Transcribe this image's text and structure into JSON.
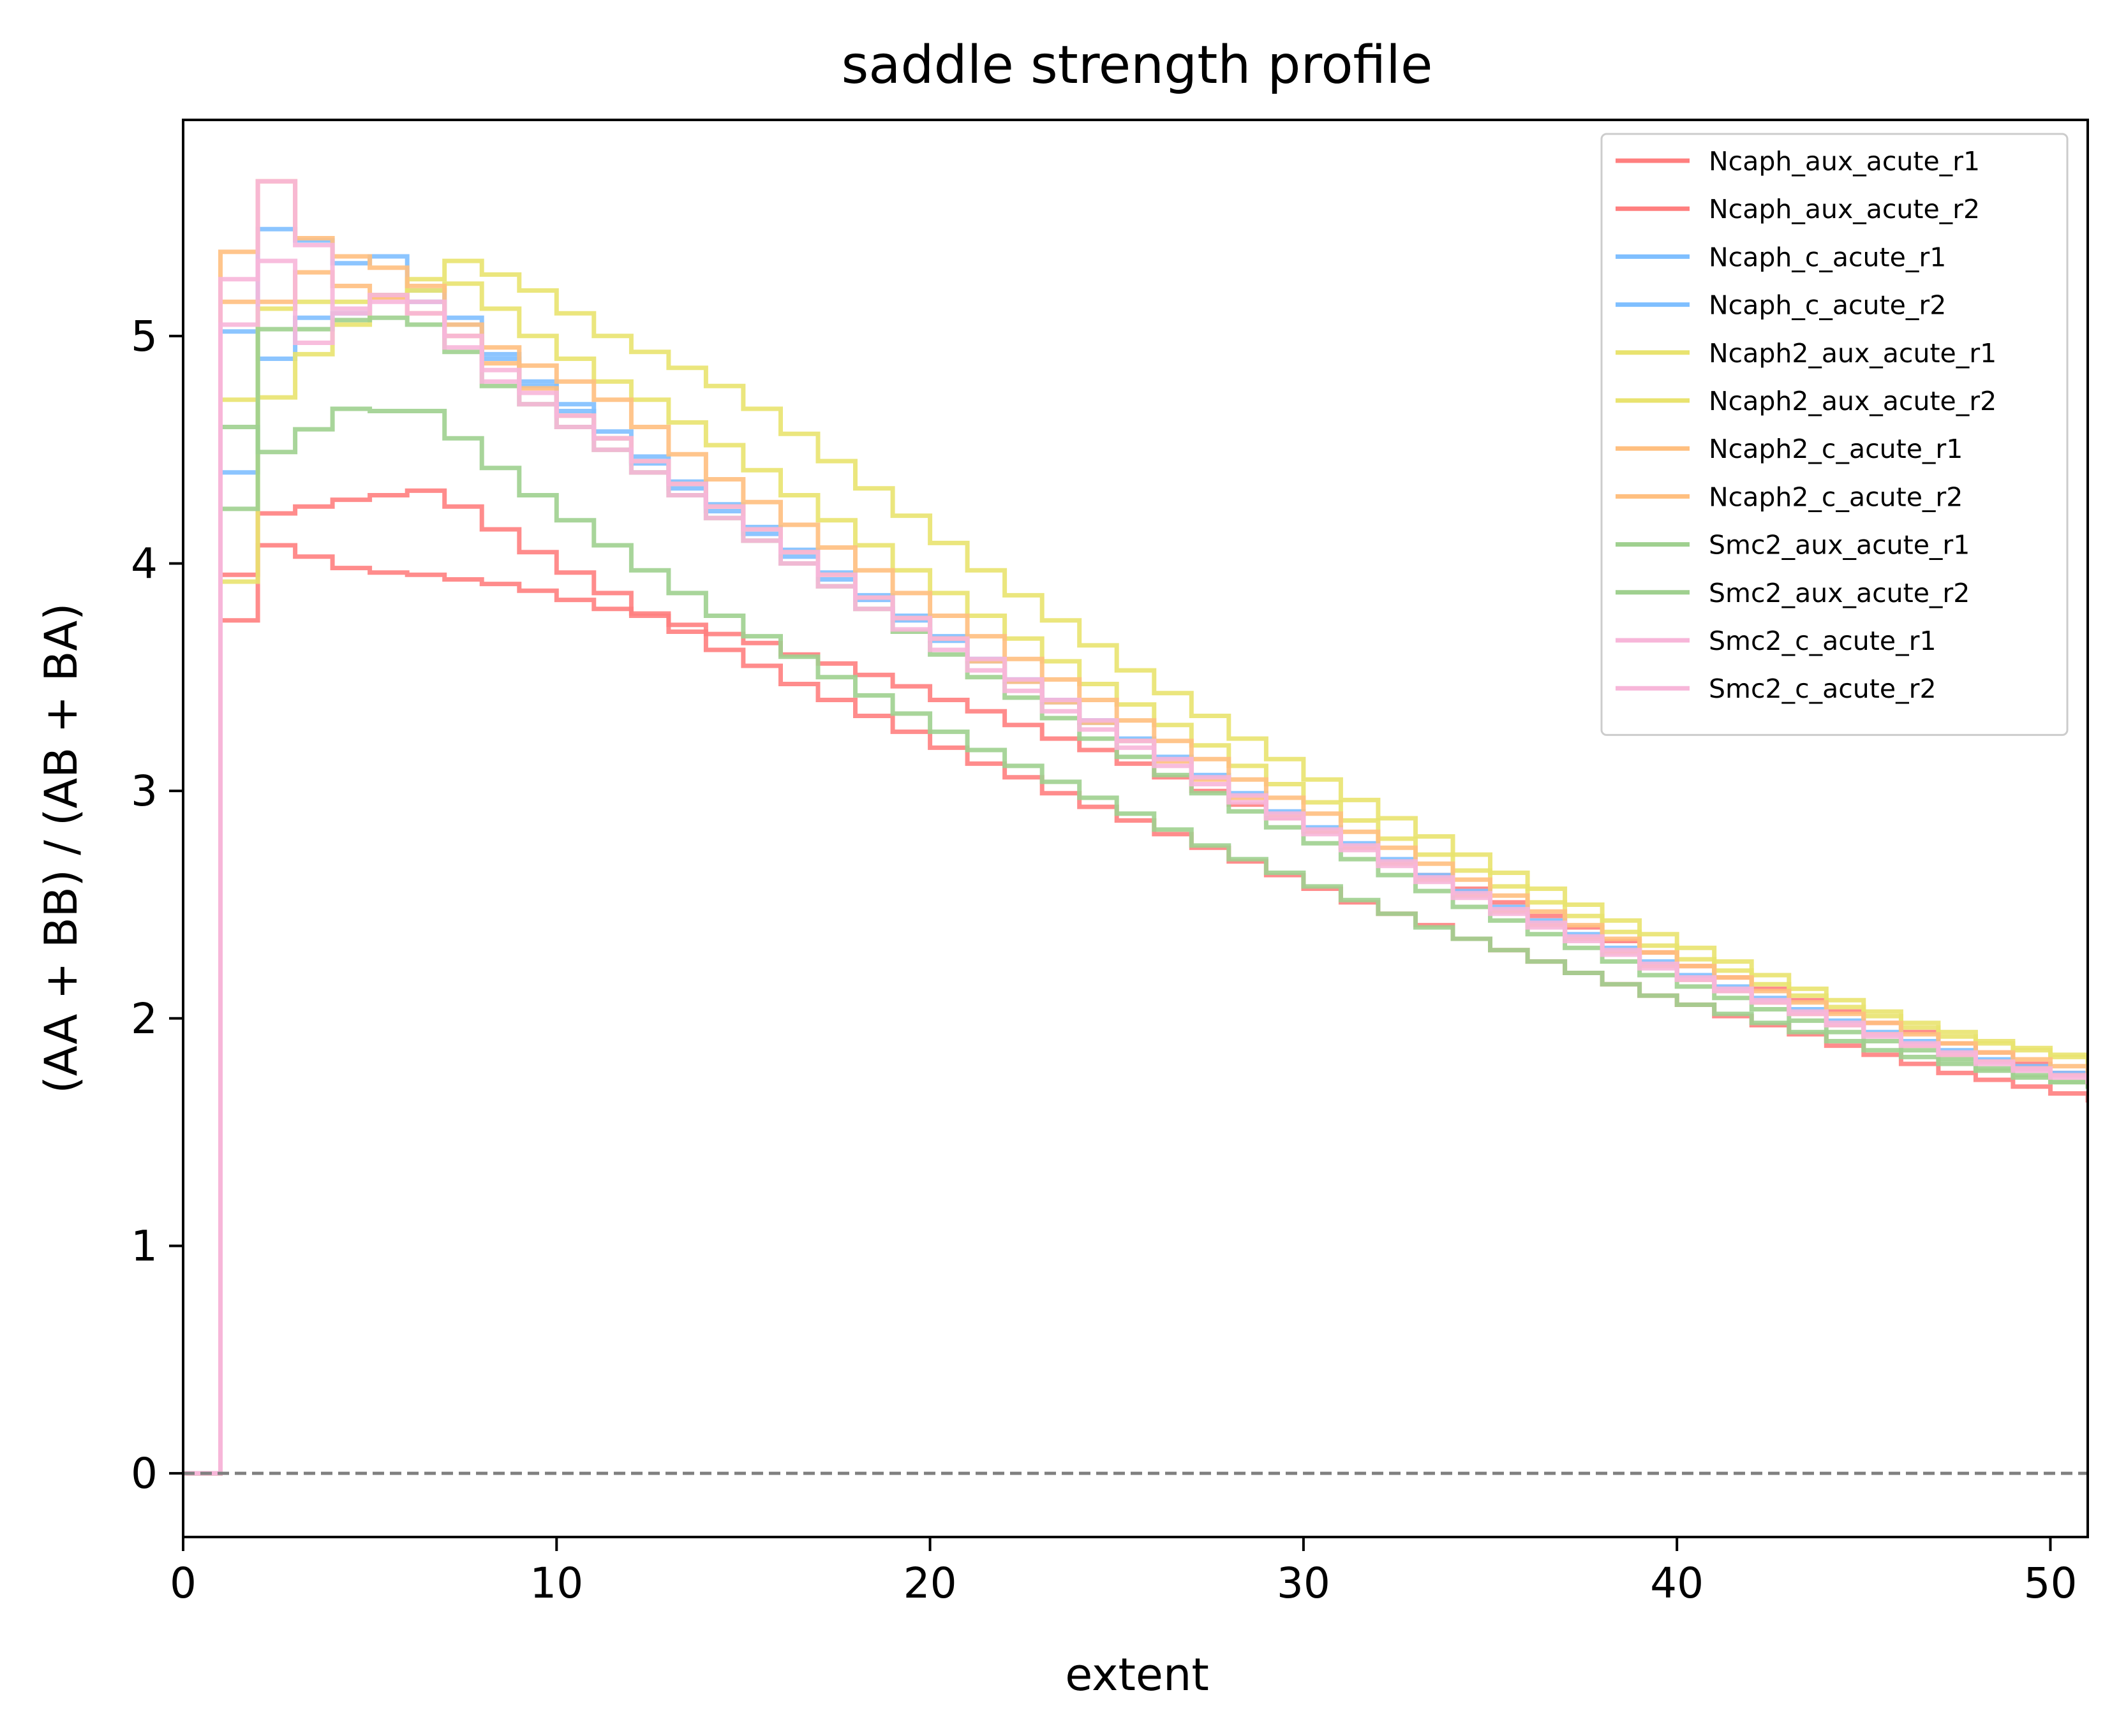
{
  "chart_data": {
    "type": "line",
    "step": "post",
    "title": "saddle strength profile",
    "xlabel": "extent",
    "ylabel": "(AA + BB) / (AB + BA)",
    "xlim": [
      0,
      51
    ],
    "ylim": [
      -0.28,
      5.95
    ],
    "xticks": [
      "0",
      "10",
      "20",
      "30",
      "40",
      "50"
    ],
    "yticks": [
      "0",
      "1",
      "2",
      "3",
      "4",
      "5"
    ],
    "grid": false,
    "legend_position": "top-right",
    "reference_line": {
      "y": 0,
      "style": "dashed",
      "color": "#808080"
    },
    "series": [
      {
        "name": "Ncaph_aux_acute_r1",
        "color": "#ff7f7f",
        "values": [
          0,
          3.75,
          4.08,
          4.03,
          3.98,
          3.96,
          3.95,
          3.93,
          3.91,
          3.88,
          3.84,
          3.8,
          3.77,
          3.73,
          3.69,
          3.65,
          3.6,
          3.56,
          3.51,
          3.46,
          3.4,
          3.35,
          3.29,
          3.23,
          3.18,
          3.12,
          3.06,
          3.0,
          2.94,
          2.88,
          2.82,
          2.75,
          2.69,
          2.63,
          2.57,
          2.51,
          2.45,
          2.4,
          2.34,
          2.29,
          2.23,
          2.18,
          2.13,
          2.08,
          2.03,
          1.98,
          1.94,
          1.89,
          1.85,
          1.8,
          1.76,
          1.72
        ]
      },
      {
        "name": "Ncaph_aux_acute_r2",
        "color": "#ff7f7f",
        "values": [
          0,
          3.95,
          4.22,
          4.25,
          4.28,
          4.3,
          4.32,
          4.25,
          4.15,
          4.05,
          3.96,
          3.87,
          3.78,
          3.7,
          3.62,
          3.55,
          3.47,
          3.4,
          3.33,
          3.26,
          3.19,
          3.12,
          3.06,
          2.99,
          2.93,
          2.87,
          2.81,
          2.75,
          2.69,
          2.63,
          2.57,
          2.51,
          2.46,
          2.41,
          2.35,
          2.3,
          2.25,
          2.2,
          2.15,
          2.1,
          2.06,
          2.01,
          1.97,
          1.93,
          1.88,
          1.84,
          1.8,
          1.76,
          1.73,
          1.7,
          1.67,
          1.64
        ]
      },
      {
        "name": "Ncaph_c_acute_r1",
        "color": "#7fbfff",
        "values": [
          0,
          4.4,
          5.47,
          5.42,
          5.32,
          5.35,
          5.2,
          5.08,
          4.92,
          4.8,
          4.7,
          4.58,
          4.47,
          4.36,
          4.26,
          4.16,
          4.06,
          3.96,
          3.86,
          3.77,
          3.68,
          3.58,
          3.49,
          3.4,
          3.31,
          3.23,
          3.15,
          3.07,
          2.99,
          2.91,
          2.84,
          2.77,
          2.7,
          2.63,
          2.56,
          2.49,
          2.43,
          2.37,
          2.31,
          2.25,
          2.19,
          2.14,
          2.09,
          2.04,
          1.99,
          1.94,
          1.9,
          1.86,
          1.82,
          1.79,
          1.76,
          1.74
        ]
      },
      {
        "name": "Ncaph_c_acute_r2",
        "color": "#7fbfff",
        "values": [
          0,
          5.02,
          4.9,
          5.08,
          5.1,
          5.18,
          5.15,
          5.05,
          4.9,
          4.78,
          4.67,
          4.55,
          4.44,
          4.33,
          4.23,
          4.13,
          4.03,
          3.93,
          3.84,
          3.75,
          3.66,
          3.57,
          3.48,
          3.39,
          3.3,
          3.22,
          3.14,
          3.06,
          2.98,
          2.9,
          2.83,
          2.76,
          2.69,
          2.62,
          2.55,
          2.48,
          2.42,
          2.36,
          2.3,
          2.24,
          2.18,
          2.13,
          2.08,
          2.03,
          1.98,
          1.93,
          1.89,
          1.85,
          1.81,
          1.78,
          1.75,
          1.73
        ]
      },
      {
        "name": "Ncaph2_aux_acute_r1",
        "color": "#e9e36f",
        "values": [
          0,
          3.92,
          4.73,
          4.92,
          5.05,
          5.18,
          5.25,
          5.33,
          5.27,
          5.2,
          5.1,
          5.0,
          4.93,
          4.86,
          4.78,
          4.68,
          4.57,
          4.45,
          4.33,
          4.21,
          4.09,
          3.97,
          3.86,
          3.75,
          3.64,
          3.53,
          3.43,
          3.33,
          3.23,
          3.14,
          3.05,
          2.96,
          2.88,
          2.8,
          2.72,
          2.64,
          2.57,
          2.5,
          2.43,
          2.37,
          2.31,
          2.25,
          2.19,
          2.13,
          2.08,
          2.03,
          1.98,
          1.94,
          1.9,
          1.87,
          1.84,
          1.82
        ]
      },
      {
        "name": "Ncaph2_aux_acute_r2",
        "color": "#e9e36f",
        "values": [
          0,
          4.72,
          5.12,
          5.15,
          5.15,
          5.17,
          5.2,
          5.23,
          5.12,
          5.0,
          4.9,
          4.8,
          4.72,
          4.62,
          4.52,
          4.41,
          4.3,
          4.19,
          4.08,
          3.97,
          3.87,
          3.77,
          3.67,
          3.57,
          3.47,
          3.38,
          3.29,
          3.2,
          3.11,
          3.03,
          2.95,
          2.87,
          2.79,
          2.72,
          2.65,
          2.58,
          2.51,
          2.45,
          2.38,
          2.32,
          2.26,
          2.21,
          2.15,
          2.1,
          2.05,
          2.01,
          1.96,
          1.92,
          1.89,
          1.86,
          1.83,
          1.8
        ]
      },
      {
        "name": "Ncaph2_c_acute_r1",
        "color": "#ffbf7f",
        "values": [
          0,
          5.37,
          5.68,
          5.43,
          5.35,
          5.3,
          5.22,
          5.05,
          4.95,
          4.87,
          4.8,
          4.72,
          4.6,
          4.48,
          4.37,
          4.27,
          4.17,
          4.07,
          3.97,
          3.87,
          3.77,
          3.68,
          3.58,
          3.49,
          3.4,
          3.31,
          3.22,
          3.14,
          3.05,
          2.97,
          2.9,
          2.82,
          2.75,
          2.68,
          2.61,
          2.54,
          2.47,
          2.41,
          2.35,
          2.29,
          2.23,
          2.18,
          2.12,
          2.07,
          2.02,
          1.98,
          1.93,
          1.89,
          1.85,
          1.82,
          1.79,
          1.76
        ]
      },
      {
        "name": "Ncaph2_c_acute_r2",
        "color": "#ffbf7f",
        "values": [
          0,
          5.15,
          5.15,
          5.28,
          5.22,
          5.17,
          5.1,
          5.0,
          4.88,
          4.77,
          4.65,
          4.55,
          4.45,
          4.35,
          4.25,
          4.15,
          4.05,
          3.95,
          3.85,
          3.76,
          3.67,
          3.57,
          3.48,
          3.39,
          3.3,
          3.22,
          3.13,
          3.05,
          2.97,
          2.89,
          2.82,
          2.75,
          2.68,
          2.61,
          2.54,
          2.47,
          2.41,
          2.35,
          2.29,
          2.23,
          2.17,
          2.12,
          2.07,
          2.02,
          1.97,
          1.93,
          1.88,
          1.84,
          1.81,
          1.78,
          1.75,
          1.73
        ]
      },
      {
        "name": "Smc2_aux_acute_r1",
        "color": "#9fd08f",
        "values": [
          0,
          4.24,
          5.03,
          5.03,
          5.07,
          5.08,
          5.05,
          4.93,
          4.78,
          4.7,
          4.6,
          4.5,
          4.4,
          4.3,
          4.2,
          4.1,
          4.0,
          3.9,
          3.8,
          3.7,
          3.6,
          3.5,
          3.41,
          3.32,
          3.23,
          3.15,
          3.07,
          2.99,
          2.91,
          2.84,
          2.77,
          2.7,
          2.63,
          2.56,
          2.49,
          2.43,
          2.37,
          2.31,
          2.25,
          2.19,
          2.14,
          2.09,
          2.04,
          1.99,
          1.94,
          1.9,
          1.86,
          1.82,
          1.78,
          1.75,
          1.72,
          1.7
        ]
      },
      {
        "name": "Smc2_aux_acute_r2",
        "color": "#9fd08f",
        "values": [
          0,
          4.6,
          4.49,
          4.59,
          4.68,
          4.67,
          4.67,
          4.55,
          4.42,
          4.3,
          4.19,
          4.08,
          3.97,
          3.87,
          3.77,
          3.68,
          3.59,
          3.5,
          3.42,
          3.34,
          3.26,
          3.18,
          3.11,
          3.04,
          2.97,
          2.9,
          2.83,
          2.76,
          2.7,
          2.64,
          2.58,
          2.52,
          2.46,
          2.4,
          2.35,
          2.3,
          2.25,
          2.2,
          2.15,
          2.1,
          2.06,
          2.02,
          1.98,
          1.94,
          1.9,
          1.86,
          1.83,
          1.8,
          1.77,
          1.74,
          1.72,
          1.7
        ]
      },
      {
        "name": "Smc2_c_acute_r1",
        "color": "#f7b6d9",
        "values": [
          0,
          5.25,
          5.68,
          5.4,
          5.12,
          5.18,
          5.15,
          5.0,
          4.85,
          4.75,
          4.65,
          4.55,
          4.45,
          4.35,
          4.25,
          4.15,
          4.05,
          3.95,
          3.85,
          3.76,
          3.67,
          3.58,
          3.49,
          3.4,
          3.31,
          3.22,
          3.14,
          3.06,
          2.98,
          2.9,
          2.83,
          2.76,
          2.69,
          2.62,
          2.55,
          2.48,
          2.42,
          2.36,
          2.3,
          2.24,
          2.18,
          2.13,
          2.08,
          2.03,
          1.98,
          1.93,
          1.89,
          1.85,
          1.81,
          1.78,
          1.75,
          1.73
        ]
      },
      {
        "name": "Smc2_c_acute_r2",
        "color": "#f7b6d9",
        "values": [
          0,
          5.05,
          5.33,
          4.97,
          5.1,
          5.15,
          5.1,
          4.95,
          4.8,
          4.7,
          4.6,
          4.5,
          4.4,
          4.3,
          4.2,
          4.1,
          4.0,
          3.9,
          3.8,
          3.71,
          3.62,
          3.53,
          3.44,
          3.35,
          3.27,
          3.19,
          3.11,
          3.03,
          2.95,
          2.88,
          2.81,
          2.74,
          2.67,
          2.6,
          2.53,
          2.46,
          2.4,
          2.34,
          2.28,
          2.22,
          2.17,
          2.12,
          2.07,
          2.02,
          1.97,
          1.92,
          1.88,
          1.84,
          1.8,
          1.77,
          1.74,
          1.72
        ]
      }
    ]
  }
}
